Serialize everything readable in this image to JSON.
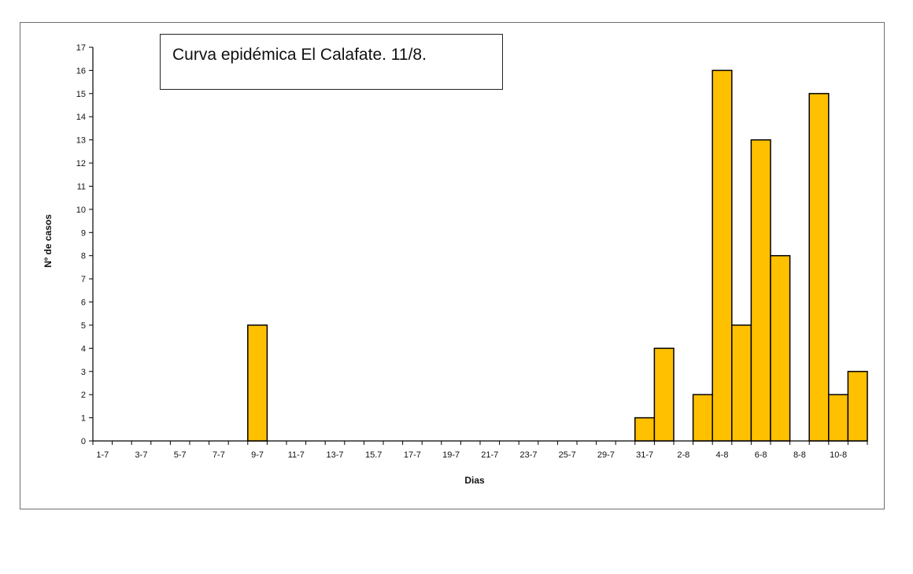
{
  "chart_data": {
    "type": "bar",
    "title": "Curva epidémica El Calafate. 11/8.",
    "xlabel": "Dias",
    "ylabel": "Nº de casos",
    "ylim": [
      0,
      17
    ],
    "yticks": [
      0,
      1,
      2,
      3,
      4,
      5,
      6,
      7,
      8,
      9,
      10,
      11,
      12,
      13,
      14,
      15,
      16,
      17
    ],
    "x_tick_labels": [
      "1-7",
      "3-7",
      "5-7",
      "7-7",
      "9-7",
      "11-7",
      "13-7",
      "15.7",
      "17-7",
      "19-7",
      "21-7",
      "23-7",
      "25-7",
      "29-7",
      "31-7",
      "2-8",
      "4-8",
      "6-8",
      "8-8",
      "10-8"
    ],
    "bar_color": "#ffc000",
    "bar_edge_color": "#000000",
    "values": [
      0,
      0,
      0,
      0,
      0,
      0,
      0,
      0,
      5,
      0,
      0,
      0,
      0,
      0,
      0,
      0,
      0,
      0,
      0,
      0,
      0,
      0,
      0,
      0,
      0,
      0,
      0,
      0,
      1,
      4,
      0,
      2,
      16,
      5,
      13,
      8,
      0,
      15,
      2,
      3
    ],
    "grid": false,
    "legend": "none"
  }
}
